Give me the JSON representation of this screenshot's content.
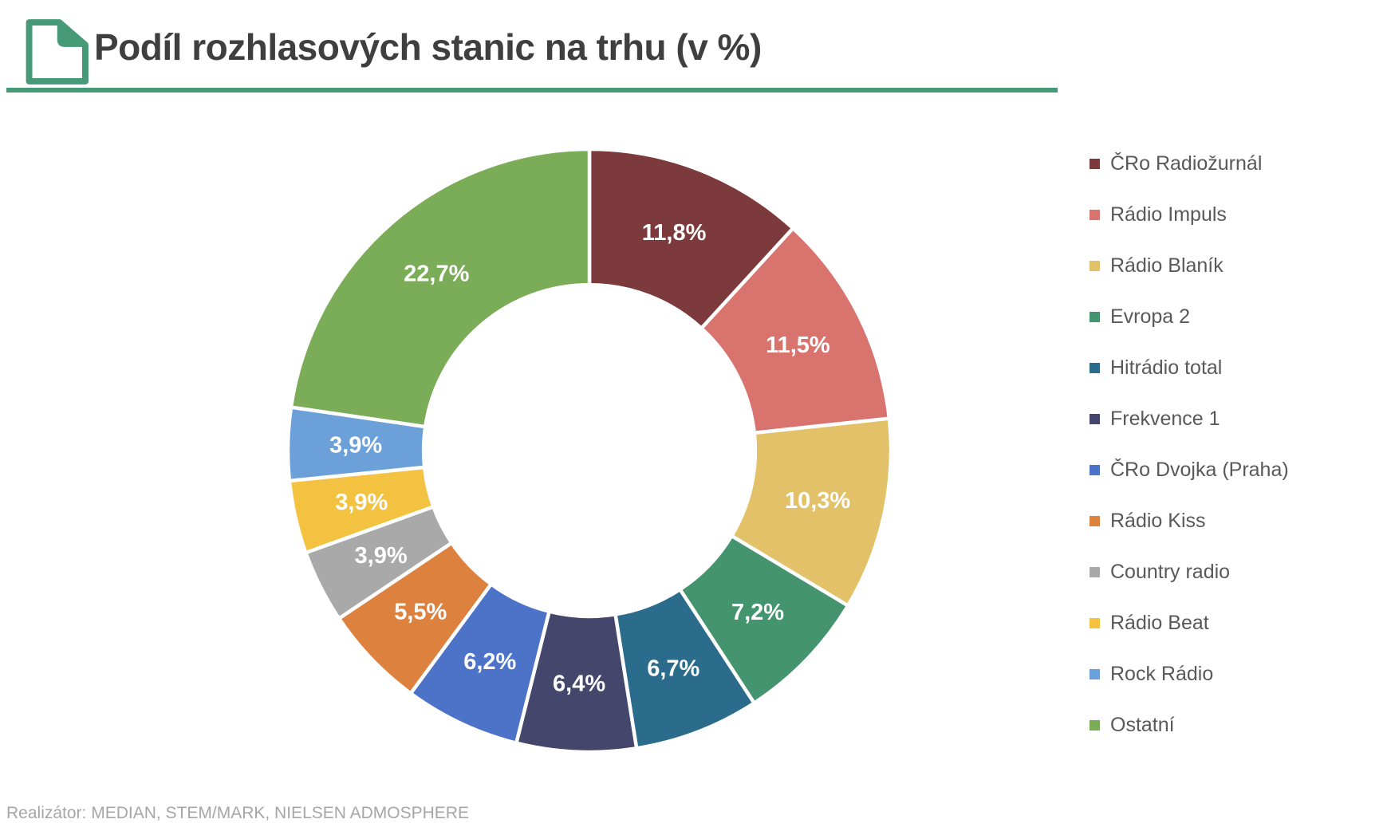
{
  "header": {
    "title": "Podíl rozhlasových stanic na trhu (v %)",
    "accent_color": "#469a78"
  },
  "chart_data": {
    "type": "pie",
    "subtype": "donut",
    "title": "Podíl rozhlasových stanic na trhu (v %)",
    "unit": "%",
    "direction": "clockwise",
    "start_angle_deg": 0,
    "hole_ratio": 0.55,
    "grid": false,
    "legend_position": "right",
    "data_label_color": "#ffffff",
    "segments": [
      {
        "name": "ČRo Radiožurnál",
        "value": 11.8,
        "label": "11,8%",
        "color": "#7c3a3c"
      },
      {
        "name": "Rádio Impuls",
        "value": 11.5,
        "label": "11,5%",
        "color": "#d8736e"
      },
      {
        "name": "Rádio Blaník",
        "value": 10.3,
        "label": "10,3%",
        "color": "#e2c169"
      },
      {
        "name": "Evropa 2",
        "value": 7.2,
        "label": "7,2%",
        "color": "#44946f"
      },
      {
        "name": "Hitrádio total",
        "value": 6.7,
        "label": "6,7%",
        "color": "#2b6b8c"
      },
      {
        "name": "Frekvence 1",
        "value": 6.4,
        "label": "6,4%",
        "color": "#45466b"
      },
      {
        "name": "ČRo Dvojka (Praha)",
        "value": 6.2,
        "label": "6,2%",
        "color": "#4c73c8"
      },
      {
        "name": "Rádio Kiss",
        "value": 5.5,
        "label": "5,5%",
        "color": "#dd813f"
      },
      {
        "name": "Country radio",
        "value": 3.9,
        "label": "3,9%",
        "color": "#a9a9a9"
      },
      {
        "name": "Rádio Beat",
        "value": 3.9,
        "label": "3,9%",
        "color": "#f2c240"
      },
      {
        "name": "Rock Rádio",
        "value": 3.9,
        "label": "3,9%",
        "color": "#6ba0d9"
      },
      {
        "name": "Ostatní",
        "value": 22.7,
        "label": "22,7%",
        "color": "#7bac57"
      }
    ]
  },
  "footer": {
    "text": "Realizátor: MEDIAN, STEM/MARK, NIELSEN ADMOSPHERE"
  }
}
